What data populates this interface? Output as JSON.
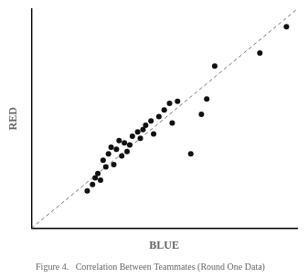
{
  "chart_data": {
    "type": "scatter",
    "title": "Figure 4.   Correlation Between Teammates (Round One Data)",
    "xlabel": "BLUE",
    "ylabel": "RED",
    "xlim": [
      0,
      10
    ],
    "ylim": [
      0,
      10
    ],
    "grid": false,
    "tick_labels": false,
    "series": [
      {
        "type": "scatter",
        "color": "#111111",
        "marker": "circle",
        "x": [
          2.1,
          2.3,
          2.4,
          2.5,
          2.6,
          2.7,
          2.8,
          2.9,
          3.0,
          3.1,
          3.2,
          3.3,
          3.4,
          3.5,
          3.6,
          3.7,
          3.8,
          4.0,
          4.1,
          4.2,
          4.3,
          4.5,
          4.6,
          4.8,
          5.0,
          5.2,
          5.3,
          5.5,
          6.0,
          6.4,
          6.6,
          6.9,
          8.6,
          9.6
        ],
        "values": [
          1.7,
          2.0,
          2.3,
          2.5,
          2.2,
          3.1,
          2.8,
          3.4,
          3.7,
          2.9,
          3.6,
          4.0,
          3.3,
          3.9,
          3.5,
          3.8,
          4.2,
          4.4,
          4.1,
          4.5,
          4.7,
          4.9,
          4.3,
          5.1,
          5.4,
          5.7,
          4.8,
          5.8,
          3.4,
          5.2,
          5.9,
          7.4,
          8.0,
          9.2
        ]
      },
      {
        "type": "line",
        "color": "#777777",
        "line_style": "dashed",
        "x": [
          0,
          10
        ],
        "values": [
          0,
          10
        ]
      }
    ]
  }
}
